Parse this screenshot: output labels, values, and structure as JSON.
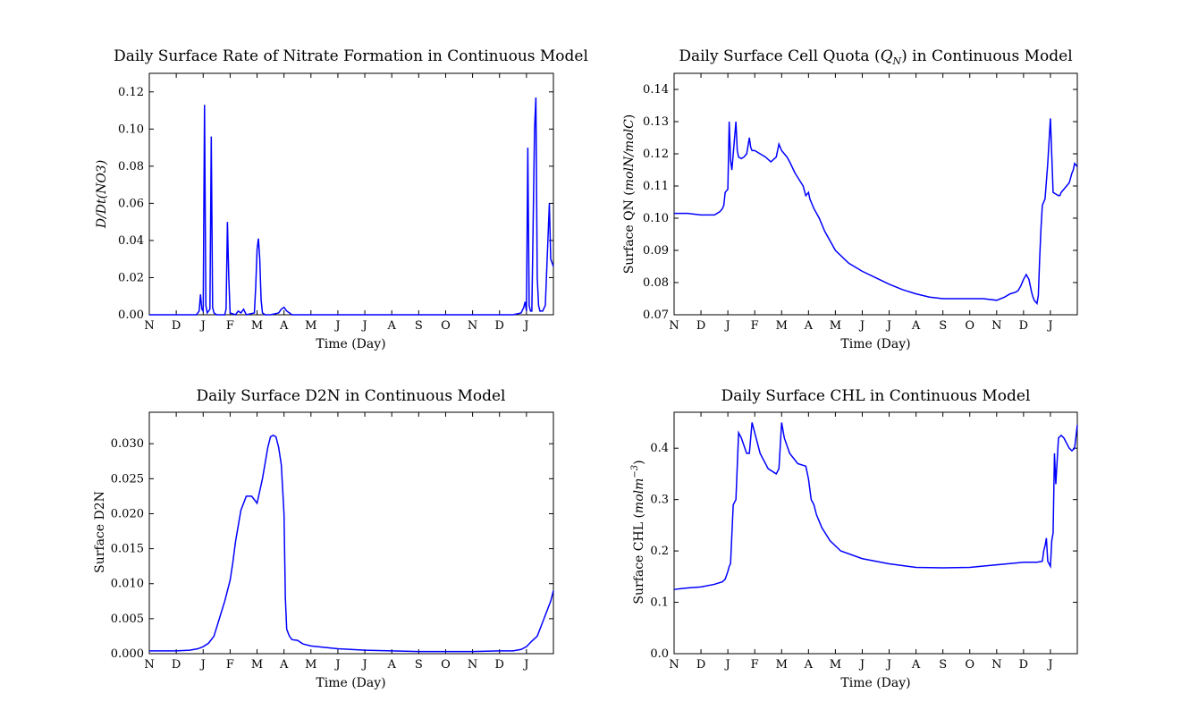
{
  "chart_data": [
    {
      "type": "line",
      "title": "Daily Surface Rate of Nitrate Formation in Continuous Model",
      "xlabel": "Time (Day)",
      "ylabel": "D/Dt(NO3)",
      "xlim": [
        0,
        15
      ],
      "ylim": [
        0,
        0.13
      ],
      "xtick_labels": [
        "N",
        "D",
        "J",
        "F",
        "M",
        "A",
        "M",
        "J",
        "J",
        "A",
        "S",
        "O",
        "N",
        "D",
        "J"
      ],
      "ytick_values": [
        0.0,
        0.02,
        0.04,
        0.06,
        0.08,
        0.1,
        0.12
      ],
      "ytick_labels": [
        "0.00",
        "0.02",
        "0.04",
        "0.06",
        "0.08",
        "0.10",
        "0.12"
      ],
      "series": [
        {
          "x": [
            0,
            1.5,
            1.75,
            1.85,
            1.9,
            1.95,
            2.0,
            2.05,
            2.1,
            2.15,
            2.25,
            2.3,
            2.35,
            2.4,
            2.5,
            2.8,
            2.85,
            2.9,
            2.95,
            3.0,
            3.2,
            3.3,
            3.4,
            3.5,
            3.6,
            3.9,
            3.95,
            4.0,
            4.05,
            4.1,
            4.15,
            4.2,
            4.3,
            4.5,
            4.8,
            4.9,
            5.0,
            5.1,
            5.3,
            6,
            8,
            10,
            12,
            13.5,
            13.8,
            13.9,
            13.95,
            14.0,
            14.05,
            14.1,
            14.15,
            14.2,
            14.3,
            14.35,
            14.4,
            14.45,
            14.5,
            14.6,
            14.7,
            14.85,
            14.9,
            15.0
          ],
          "y": [
            0,
            0,
            0,
            0.002,
            0.011,
            0.003,
            0.002,
            0.113,
            0.005,
            0.001,
            0.003,
            0.096,
            0.004,
            0.001,
            0,
            0,
            0.003,
            0.05,
            0.02,
            0.001,
            0,
            0.002,
            0.001,
            0.003,
            0,
            0.001,
            0.015,
            0.035,
            0.041,
            0.03,
            0.008,
            0.001,
            0,
            0,
            0.001,
            0.003,
            0.004,
            0.002,
            0,
            0,
            0,
            0,
            0,
            0,
            0.001,
            0.004,
            0.007,
            0.002,
            0.09,
            0.005,
            0.002,
            0.002,
            0.1,
            0.117,
            0.02,
            0.005,
            0.002,
            0.002,
            0.005,
            0.06,
            0.03,
            0.026
          ]
        }
      ]
    },
    {
      "type": "line",
      "title": "Daily Surface Cell Quota ($Q_N$) in Continuous Model",
      "title_parts": {
        "before": "Daily Surface Cell Quota (",
        "math": "Q",
        "math_sub": "N",
        "after": ") in Continuous Model"
      },
      "xlabel": "Time (Day)",
      "ylabel": "Surface QN (molN/molC)",
      "ylabel_parts": {
        "plain": "Surface QN (",
        "math": "molN/molC",
        "end": ")"
      },
      "xlim": [
        0,
        15
      ],
      "ylim": [
        0.07,
        0.145
      ],
      "xtick_labels": [
        "N",
        "D",
        "J",
        "F",
        "M",
        "A",
        "M",
        "J",
        "J",
        "A",
        "S",
        "O",
        "N",
        "D",
        "J"
      ],
      "ytick_values": [
        0.07,
        0.08,
        0.09,
        0.1,
        0.11,
        0.12,
        0.13,
        0.14
      ],
      "ytick_labels": [
        "0.07",
        "0.08",
        "0.09",
        "0.10",
        "0.11",
        "0.12",
        "0.13",
        "0.14"
      ],
      "series": [
        {
          "x": [
            0,
            0.5,
            1.0,
            1.5,
            1.7,
            1.8,
            1.85,
            1.9,
            2.0,
            2.05,
            2.1,
            2.15,
            2.2,
            2.3,
            2.35,
            2.4,
            2.5,
            2.6,
            2.7,
            2.8,
            2.85,
            2.9,
            3.0,
            3.2,
            3.4,
            3.6,
            3.8,
            3.9,
            3.95,
            4.0,
            4.1,
            4.2,
            4.3,
            4.5,
            4.8,
            4.9,
            5.0,
            5.05,
            5.1,
            5.2,
            5.4,
            5.5,
            5.6,
            6,
            6.5,
            7,
            7.5,
            8,
            8.5,
            9,
            9.5,
            10,
            10.5,
            11,
            11.5,
            12,
            12.3,
            12.5,
            12.7,
            12.8,
            12.9,
            13.0,
            13.1,
            13.2,
            13.3,
            13.35,
            13.4,
            13.5,
            13.55,
            13.6,
            13.65,
            13.7,
            13.8,
            13.9,
            14.0,
            14.1,
            14.2,
            14.3,
            14.35,
            14.4,
            14.5,
            14.6,
            14.7,
            14.8,
            14.85,
            14.9,
            15.0
          ],
          "y": [
            0.1015,
            0.1015,
            0.101,
            0.101,
            0.102,
            0.103,
            0.104,
            0.108,
            0.109,
            0.13,
            0.118,
            0.115,
            0.12,
            0.13,
            0.121,
            0.119,
            0.1185,
            0.119,
            0.12,
            0.125,
            0.122,
            0.121,
            0.121,
            0.12,
            0.119,
            0.1175,
            0.119,
            0.123,
            0.122,
            0.121,
            0.12,
            0.119,
            0.1175,
            0.114,
            0.11,
            0.107,
            0.108,
            0.106,
            0.105,
            0.103,
            0.1,
            0.098,
            0.096,
            0.09,
            0.086,
            0.0835,
            0.0815,
            0.0795,
            0.0778,
            0.0765,
            0.0755,
            0.075,
            0.075,
            0.075,
            0.075,
            0.0745,
            0.0755,
            0.0765,
            0.077,
            0.0775,
            0.079,
            0.081,
            0.0825,
            0.081,
            0.077,
            0.0755,
            0.0745,
            0.0735,
            0.076,
            0.0875,
            0.097,
            0.104,
            0.106,
            0.117,
            0.131,
            0.108,
            0.1075,
            0.107,
            0.107,
            0.108,
            0.109,
            0.11,
            0.111,
            0.114,
            0.115,
            0.117,
            0.116
          ]
        }
      ]
    },
    {
      "type": "line",
      "title": "Daily Surface D2N in Continuous Model",
      "xlabel": "Time (Day)",
      "ylabel": "Surface D2N",
      "xlim": [
        0,
        15
      ],
      "ylim": [
        0,
        0.0345
      ],
      "xtick_labels": [
        "N",
        "D",
        "J",
        "F",
        "M",
        "A",
        "M",
        "J",
        "J",
        "A",
        "S",
        "O",
        "N",
        "D",
        "J"
      ],
      "ytick_values": [
        0.0,
        0.005,
        0.01,
        0.015,
        0.02,
        0.025,
        0.03
      ],
      "ytick_labels": [
        "0.000",
        "0.005",
        "0.010",
        "0.015",
        "0.020",
        "0.025",
        "0.030"
      ],
      "series": [
        {
          "x": [
            0,
            0.5,
            1.0,
            1.5,
            1.8,
            2.0,
            2.2,
            2.4,
            2.6,
            2.8,
            2.9,
            3.0,
            3.1,
            3.2,
            3.4,
            3.6,
            3.8,
            4.0,
            4.2,
            4.4,
            4.5,
            4.6,
            4.7,
            4.8,
            4.9,
            5.0,
            5.05,
            5.1,
            5.2,
            5.3,
            5.5,
            5.7,
            6,
            7,
            8,
            9,
            10,
            11,
            12,
            13,
            13.5,
            13.8,
            14.0,
            14.2,
            14.4,
            14.6,
            14.8,
            14.9,
            15.0
          ],
          "y": [
            0.0004,
            0.0004,
            0.0004,
            0.0005,
            0.0007,
            0.001,
            0.0015,
            0.0025,
            0.005,
            0.0075,
            0.009,
            0.0105,
            0.013,
            0.016,
            0.0205,
            0.0225,
            0.0225,
            0.0215,
            0.025,
            0.0295,
            0.031,
            0.0312,
            0.031,
            0.0295,
            0.027,
            0.02,
            0.008,
            0.0035,
            0.0025,
            0.002,
            0.0019,
            0.0014,
            0.0011,
            0.0007,
            0.0005,
            0.0004,
            0.0003,
            0.0003,
            0.0003,
            0.0004,
            0.0004,
            0.0006,
            0.001,
            0.0018,
            0.0025,
            0.0045,
            0.0065,
            0.0075,
            0.009
          ]
        }
      ]
    },
    {
      "type": "line",
      "title": "Daily Surface CHL in Continuous Model",
      "xlabel": "Time (Day)",
      "ylabel": "Surface CHL (molm^-3)",
      "ylabel_parts": {
        "plain": "Surface CHL (",
        "math": "molm",
        "sup": "−3",
        "end": ")"
      },
      "xlim": [
        0,
        15
      ],
      "ylim": [
        0,
        0.47
      ],
      "xtick_labels": [
        "N",
        "D",
        "J",
        "F",
        "M",
        "A",
        "M",
        "J",
        "J",
        "A",
        "S",
        "O",
        "N",
        "D",
        "J"
      ],
      "ytick_values": [
        0.0,
        0.1,
        0.2,
        0.3,
        0.4
      ],
      "ytick_labels": [
        "0.0",
        "0.1",
        "0.2",
        "0.3",
        "0.4"
      ],
      "series": [
        {
          "x": [
            0,
            0.5,
            1.0,
            1.5,
            1.8,
            1.9,
            2.0,
            2.05,
            2.1,
            2.2,
            2.3,
            2.4,
            2.5,
            2.7,
            2.8,
            2.9,
            3.0,
            3.2,
            3.5,
            3.8,
            3.9,
            4.0,
            4.1,
            4.3,
            4.6,
            4.9,
            5.0,
            5.1,
            5.2,
            5.3,
            5.5,
            5.8,
            6.2,
            7,
            8,
            9,
            10,
            11,
            12,
            13,
            13.5,
            13.7,
            13.75,
            13.8,
            13.85,
            13.9,
            14.0,
            14.05,
            14.1,
            14.15,
            14.2,
            14.3,
            14.4,
            14.5,
            14.6,
            14.7,
            14.8,
            14.9,
            15.0
          ],
          "y": [
            0.125,
            0.128,
            0.13,
            0.135,
            0.14,
            0.145,
            0.16,
            0.17,
            0.175,
            0.29,
            0.3,
            0.43,
            0.42,
            0.39,
            0.39,
            0.45,
            0.43,
            0.39,
            0.36,
            0.35,
            0.36,
            0.45,
            0.42,
            0.39,
            0.37,
            0.365,
            0.34,
            0.3,
            0.29,
            0.27,
            0.245,
            0.22,
            0.2,
            0.185,
            0.175,
            0.168,
            0.167,
            0.168,
            0.173,
            0.178,
            0.178,
            0.18,
            0.2,
            0.21,
            0.225,
            0.18,
            0.17,
            0.22,
            0.235,
            0.39,
            0.33,
            0.42,
            0.425,
            0.42,
            0.41,
            0.4,
            0.395,
            0.4,
            0.445
          ]
        }
      ]
    }
  ]
}
